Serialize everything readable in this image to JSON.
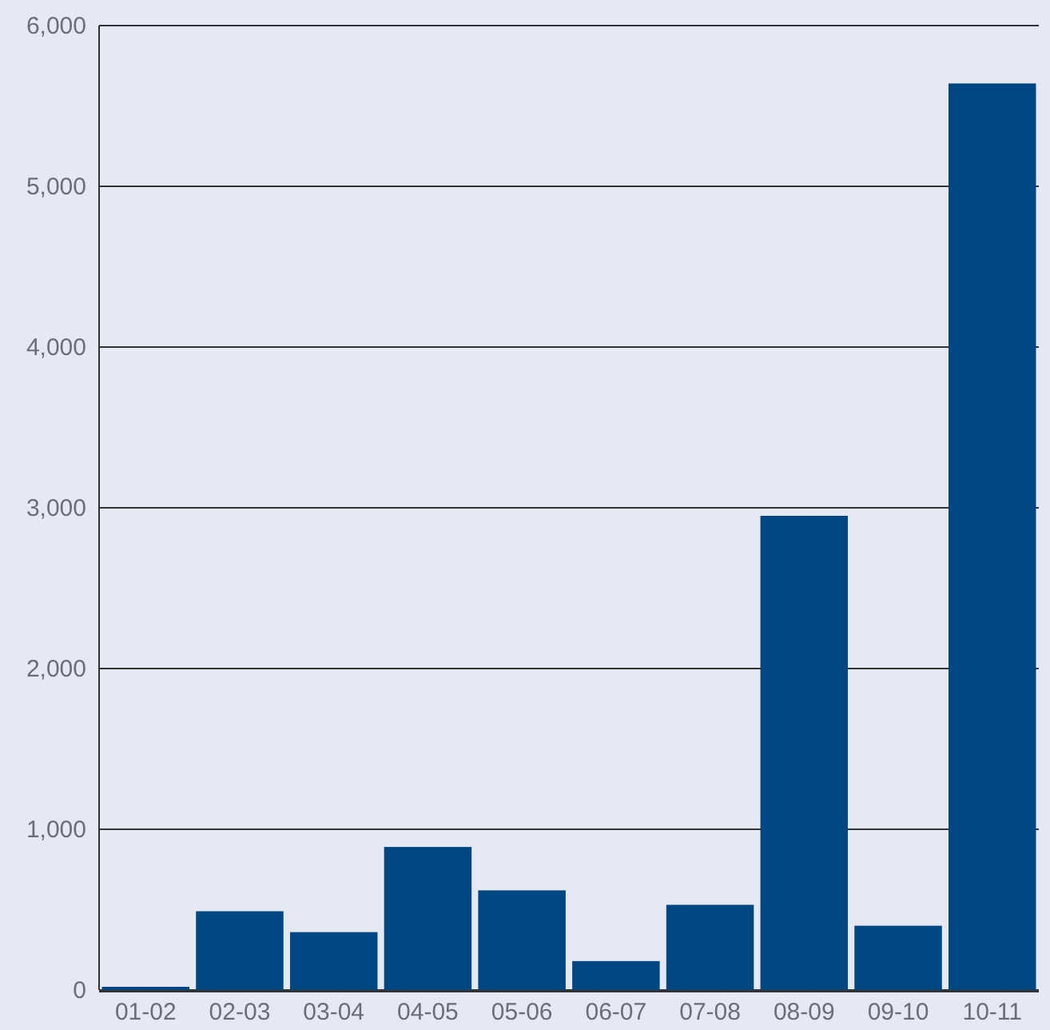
{
  "chart_data": {
    "type": "bar",
    "categories": [
      "01-02",
      "02-03",
      "03-04",
      "04-05",
      "05-06",
      "06-07",
      "07-08",
      "08-09",
      "09-10",
      "10-11"
    ],
    "values": [
      20,
      490,
      360,
      890,
      620,
      180,
      530,
      2950,
      400,
      5640
    ],
    "color": "#004680",
    "ylim": [
      0,
      6000
    ],
    "yticks": [
      {
        "value": 0,
        "label": "0"
      },
      {
        "value": 1000,
        "label": "1,000"
      },
      {
        "value": 2000,
        "label": "2,000"
      },
      {
        "value": 3000,
        "label": "3,000"
      },
      {
        "value": 4000,
        "label": "4,000"
      },
      {
        "value": 5000,
        "label": "5,000"
      },
      {
        "value": 6000,
        "label": "6,000"
      }
    ],
    "grid": "y"
  }
}
